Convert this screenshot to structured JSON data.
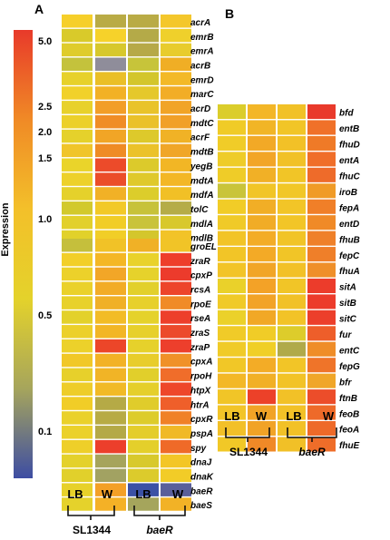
{
  "panels": {
    "A": {
      "label": "A",
      "conditions": [
        "LB",
        "W",
        "LB",
        "W"
      ],
      "strains": [
        "SL1344",
        "baeR"
      ],
      "blocks": [
        {
          "genes": [
            "acrA",
            "emrB",
            "emrA",
            "acrB",
            "emrD",
            "marC",
            "acrD",
            "mdtC",
            "acrF",
            "mdtB",
            "yegB",
            "mdtA",
            "mdfA",
            "tolC",
            "mdlA",
            "mdlB"
          ],
          "colors": [
            [
              "#f6cf2a",
              "#b9ab45",
              "#b9ab45",
              "#f4c72b"
            ],
            [
              "#d9ca2a",
              "#f6d22a",
              "#b4aa48",
              "#efd02b"
            ],
            [
              "#dfcc2b",
              "#d7c82c",
              "#b6a948",
              "#e8cc2d"
            ],
            [
              "#c4c23c",
              "#8f8d9a",
              "#c7c43a",
              "#f0ae25"
            ],
            [
              "#e7d12a",
              "#eabf27",
              "#d3c62c",
              "#f3b927"
            ],
            [
              "#f1d12a",
              "#f2b125",
              "#e5c82b",
              "#f2ad26"
            ],
            [
              "#e8d12b",
              "#f29e28",
              "#e9c32a",
              "#f1a427"
            ],
            [
              "#ecd02a",
              "#f08d26",
              "#eac12a",
              "#f1a028"
            ],
            [
              "#e5d12b",
              "#f1a526",
              "#ddc92b",
              "#f0b226"
            ],
            [
              "#f0c52a",
              "#ef8b25",
              "#ebc22a",
              "#f0a628"
            ],
            [
              "#ead42a",
              "#ec4b2a",
              "#dcca2b",
              "#f2b625"
            ],
            [
              "#edd12a",
              "#eb4d29",
              "#dfc92b",
              "#f3b726"
            ],
            [
              "#e5d12b",
              "#f1b126",
              "#dccd2b",
              "#f1c026"
            ],
            [
              "#d2c92c",
              "#f2c927",
              "#c7c23a",
              "#b5ac48"
            ],
            [
              "#e2d02b",
              "#f1cd26",
              "#c9c33a",
              "#d8c82c"
            ],
            [
              "#e1d12a",
              "#f1ce27",
              "#d4c62c",
              "#f2c328"
            ]
          ]
        },
        {
          "genes": [
            "groEL",
            "zraR",
            "cpxP",
            "rcsA",
            "rpoE",
            "rseA",
            "zraS",
            "zraP",
            "cpxA",
            "rpoH",
            "htpX",
            "htrA",
            "cpxR",
            "pspA",
            "spy",
            "dnaJ",
            "dnaK",
            "baeR",
            "baeS"
          ],
          "colors": [
            [
              "#c5bf3c",
              "#f1c227",
              "#f0b126",
              "#f1c427"
            ],
            [
              "#f2cf28",
              "#f4b725",
              "#e9d22b",
              "#ee3e2b"
            ],
            [
              "#ecd12a",
              "#f2a627",
              "#e6d22b",
              "#ec3b2c"
            ],
            [
              "#ead12a",
              "#f2ac27",
              "#e2d02b",
              "#ed452b"
            ],
            [
              "#e8d12a",
              "#f0b027",
              "#e7d02b",
              "#f08b27"
            ],
            [
              "#e3d12b",
              "#f2bc26",
              "#e5d22b",
              "#ed3f2b"
            ],
            [
              "#ecd02a",
              "#f2b626",
              "#e7d02b",
              "#ec4a2b"
            ],
            [
              "#ecd12a",
              "#ec4629",
              "#e6d12b",
              "#ed3f2c"
            ],
            [
              "#f1c827",
              "#f2b226",
              "#e8cd2b",
              "#f09128"
            ],
            [
              "#e7d02b",
              "#f1b426",
              "#e1cf2b",
              "#f06d2a"
            ],
            [
              "#eecd29",
              "#f1ba26",
              "#e5cf2b",
              "#ee472a"
            ],
            [
              "#f1cd27",
              "#b5aa46",
              "#e0cc2b",
              "#ef5f2a"
            ],
            [
              "#ead12a",
              "#b7ab45",
              "#ddcc2b",
              "#f08127"
            ],
            [
              "#ebd12a",
              "#b4a947",
              "#e4cd2b",
              "#f0b926"
            ],
            [
              "#eecf29",
              "#ec3f2b",
              "#e4cf2b",
              "#ef6a28"
            ],
            [
              "#e4d12b",
              "#a6a45c",
              "#d8c92c",
              "#f3c626"
            ],
            [
              "#e1d02b",
              "#a2a262",
              "#dccb2c",
              "#f2cc27"
            ],
            [
              "#e7d12a",
              "#f3a027",
              "#3b51a5",
              "#5a5f9a"
            ],
            [
              "#e5d22b",
              "#f4b126",
              "#a5a55c",
              "#f2b226"
            ]
          ]
        }
      ]
    },
    "B": {
      "label": "B",
      "conditions": [
        "LB",
        "W",
        "LB",
        "W"
      ],
      "strains": [
        "SL1344",
        "baeR"
      ],
      "genes": [
        "bfd",
        "entB",
        "fhuD",
        "entA",
        "fhuC",
        "iroB",
        "fepA",
        "entD",
        "fhuB",
        "fepC",
        "fhuA",
        "sitA",
        "sitB",
        "sitC",
        "fur",
        "entC",
        "fepG",
        "bfr",
        "ftnB",
        "feoB",
        "feoA",
        "fhuE"
      ],
      "colors": [
        [
          "#dbcd2b",
          "#f3b627",
          "#f1c127",
          "#e93a2b"
        ],
        [
          "#f0cb27",
          "#f1b526",
          "#f1c527",
          "#f07129"
        ],
        [
          "#f0cc28",
          "#f2a926",
          "#f2c127",
          "#ef7a27"
        ],
        [
          "#eecc29",
          "#f2a527",
          "#f1c127",
          "#f06e29"
        ],
        [
          "#efcc28",
          "#f1b026",
          "#f1c527",
          "#ee6b2a"
        ],
        [
          "#c9c43a",
          "#f1c527",
          "#f1c727",
          "#f09b27"
        ],
        [
          "#f1cc27",
          "#f1ae26",
          "#f2c527",
          "#f07f28"
        ],
        [
          "#f0ca28",
          "#f1ac26",
          "#f2c527",
          "#f08a27"
        ],
        [
          "#f2c427",
          "#f3ac26",
          "#f1c427",
          "#ef8029"
        ],
        [
          "#f2c527",
          "#f3aa26",
          "#f1c527",
          "#ef7f29"
        ],
        [
          "#f2c427",
          "#f1a527",
          "#f2c127",
          "#ef8f29"
        ],
        [
          "#ead12a",
          "#f3a227",
          "#f1c527",
          "#ec3c2b"
        ],
        [
          "#f0ca28",
          "#f2a327",
          "#f1c127",
          "#ec3b2b"
        ],
        [
          "#ebd12a",
          "#f1a826",
          "#f2c327",
          "#ec3f2b"
        ],
        [
          "#f0cb28",
          "#f0cc27",
          "#ddcc2b",
          "#ee5e2a"
        ],
        [
          "#f0cb28",
          "#f0cf27",
          "#b0aa4a",
          "#ef8d28"
        ],
        [
          "#f1c727",
          "#f3ac26",
          "#f2c527",
          "#ef7429"
        ],
        [
          "#f3b827",
          "#f1b026",
          "#f2c327",
          "#f0a628"
        ],
        [
          "#f1c527",
          "#ec4129",
          "#f2c127",
          "#ec4d2a"
        ],
        [
          "#f2c428",
          "#f1a326",
          "#f2c127",
          "#ee6a29"
        ],
        [
          "#f2c028",
          "#f1a326",
          "#f2c127",
          "#ee6a29"
        ],
        [
          "#f1c827",
          "#f08927",
          "#f1c027",
          "#ef6d29"
        ]
      ]
    }
  },
  "color_scale": {
    "title": "Expression",
    "ticks": [
      5.0,
      2.5,
      2.0,
      1.5,
      1.0,
      0.5,
      0.1
    ],
    "tick_labels": [
      "5.0",
      "2.5",
      "2.0",
      "1.5",
      "1.0",
      "0.5",
      "0.1"
    ],
    "gradient_top_to_bottom": [
      "#e83a2a",
      "#f08a26",
      "#f3c02a",
      "#e4d22b",
      "#a6a55c",
      "#3d4da3"
    ]
  }
}
